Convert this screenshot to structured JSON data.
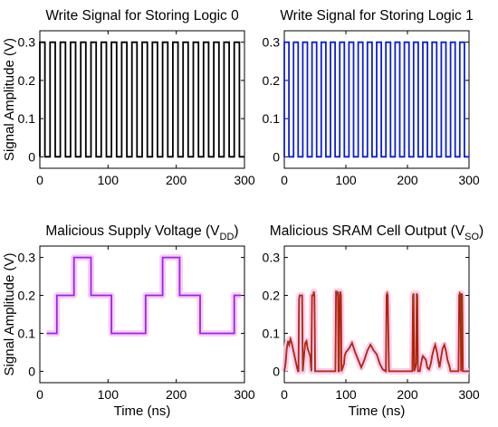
{
  "chart_data": [
    {
      "type": "line",
      "panel": "top-left",
      "title": "Write Signal for Storing Logic 0",
      "ylabel": "Signal Amplitude (V)",
      "xlabel": "",
      "xlim": [
        0,
        300
      ],
      "ylim": [
        -0.03,
        0.33
      ],
      "xticks": [
        0,
        100,
        200,
        300
      ],
      "yticks": [
        0,
        0.1,
        0.2,
        0.3
      ],
      "xtick_labels": [
        "0",
        "100",
        "200",
        "300"
      ],
      "ytick_labels": [
        "0",
        "0.1",
        "0.2",
        "0.3"
      ],
      "grid": false,
      "series": [
        {
          "color": "#000000",
          "shape": "square-wave",
          "low": 0,
          "high": 0.3,
          "period_ns": 15,
          "duty": 0.5,
          "x_start": 0,
          "x_end": 300
        }
      ]
    },
    {
      "type": "line",
      "panel": "top-right",
      "title": "Write Signal for Storing Logic 1",
      "ylabel": "",
      "xlabel": "",
      "xlim": [
        0,
        300
      ],
      "ylim": [
        -0.03,
        0.33
      ],
      "xticks": [
        0,
        100,
        200,
        300
      ],
      "yticks": [
        0,
        0.1,
        0.2,
        0.3
      ],
      "xtick_labels": [
        "0",
        "100",
        "200",
        "300"
      ],
      "ytick_labels": [
        "0",
        "0.1",
        "0.2",
        "0.3"
      ],
      "grid": false,
      "series": [
        {
          "color": "#0a1fd6",
          "shape": "square-wave",
          "low": 0,
          "high": 0.3,
          "period_ns": 15,
          "duty": 0.5,
          "x_start": 0,
          "x_end": 300
        }
      ]
    },
    {
      "type": "line",
      "panel": "bottom-left",
      "title": "Malicious Supply Voltage (V",
      "title_subscript": "DD",
      "title_suffix": ")",
      "ylabel": "Signal Amplitude (V)",
      "xlabel": "Time (ns)",
      "xlim": [
        0,
        300
      ],
      "ylim": [
        -0.03,
        0.33
      ],
      "xticks": [
        0,
        100,
        200,
        300
      ],
      "yticks": [
        0,
        0.1,
        0.2,
        0.3
      ],
      "xtick_labels": [
        "0",
        "100",
        "200",
        "300"
      ],
      "ytick_labels": [
        "0",
        "0.1",
        "0.2",
        "0.3"
      ],
      "grid": false,
      "series": [
        {
          "color": "#a020f0",
          "halo_color": "#f4c8f0",
          "x": [
            10,
            25,
            25,
            50,
            50,
            75,
            75,
            105,
            105,
            155,
            155,
            180,
            180,
            205,
            205,
            235,
            235,
            285,
            285,
            295
          ],
          "y": [
            0.1,
            0.1,
            0.2,
            0.2,
            0.3,
            0.3,
            0.2,
            0.2,
            0.1,
            0.1,
            0.2,
            0.2,
            0.3,
            0.3,
            0.2,
            0.2,
            0.1,
            0.1,
            0.2,
            0.2
          ]
        }
      ]
    },
    {
      "type": "line",
      "panel": "bottom-right",
      "title": "Malicious SRAM Cell Output (V",
      "title_subscript": "SO",
      "title_suffix": ")",
      "ylabel": "",
      "xlabel": "Time (ns)",
      "xlim": [
        0,
        300
      ],
      "ylim": [
        -0.03,
        0.33
      ],
      "xticks": [
        0,
        100,
        200,
        300
      ],
      "yticks": [
        0,
        0.1,
        0.2,
        0.3
      ],
      "xtick_labels": [
        "0",
        "100",
        "200",
        "300"
      ],
      "ytick_labels": [
        "0",
        "0.1",
        "0.2",
        "0.3"
      ],
      "grid": false,
      "series": [
        {
          "color": "#d40000",
          "overlay_color": "#5a7a20",
          "halo_color": "#f8c8ec",
          "x": [
            0,
            2,
            4,
            6,
            8,
            10,
            12,
            14,
            16,
            18,
            20,
            22,
            23,
            24,
            25,
            27,
            29,
            30,
            32,
            34,
            36,
            38,
            40,
            42,
            43,
            44,
            45,
            47,
            48,
            49,
            50,
            52,
            55,
            60,
            65,
            70,
            75,
            80,
            83,
            84,
            85,
            86,
            87,
            88,
            89,
            90,
            91,
            92,
            93,
            95,
            97,
            98,
            100,
            105,
            110,
            115,
            120,
            125,
            130,
            135,
            140,
            145,
            150,
            155,
            160,
            165,
            166,
            167,
            168,
            170,
            175,
            180,
            185,
            190,
            195,
            200,
            205,
            208,
            209,
            210,
            211,
            212,
            213,
            214,
            215,
            216,
            217,
            218,
            219,
            220,
            222,
            224,
            225,
            230,
            232,
            235,
            238,
            240,
            243,
            245,
            248,
            250,
            252,
            255,
            257,
            260,
            263,
            265,
            268,
            270,
            272,
            275,
            278,
            280,
            282,
            283,
            284,
            285,
            286,
            287,
            288,
            289,
            290,
            292,
            295,
            298,
            300
          ],
          "y": [
            0.0,
            0.02,
            0.06,
            0.08,
            0.07,
            0.085,
            0.075,
            0.06,
            0.045,
            0.03,
            0.015,
            0.0,
            0.0,
            0.19,
            0.2,
            0.2,
            0.2,
            0.0,
            0.04,
            0.075,
            0.08,
            0.06,
            0.05,
            0.04,
            0.02,
            0.0,
            0.2,
            0.2,
            0.21,
            0.2,
            0.0,
            0.0,
            0.0,
            0.0,
            0.0,
            0.0,
            0.0,
            0.0,
            0.0,
            0.21,
            0.21,
            0.2,
            0.21,
            0.0,
            0.0,
            0.2,
            0.21,
            0.2,
            0.0,
            0.01,
            0.02,
            0.04,
            0.05,
            0.06,
            0.075,
            0.05,
            0.03,
            0.01,
            0.03,
            0.055,
            0.07,
            0.055,
            0.045,
            0.02,
            0.005,
            0.0,
            0.2,
            0.205,
            0.2,
            0.0,
            0.0,
            0.0,
            0.0,
            0.0,
            0.0,
            0.0,
            0.0,
            0.0,
            0.2,
            0.205,
            0.0,
            0.005,
            0.01,
            0.02,
            0.205,
            0.2,
            0.0,
            0.0,
            0.0,
            0.0,
            0.02,
            0.035,
            0.04,
            0.03,
            0.01,
            0.005,
            0.02,
            0.04,
            0.06,
            0.07,
            0.05,
            0.03,
            0.01,
            0.04,
            0.06,
            0.07,
            0.05,
            0.03,
            0.015,
            0.0,
            0.0,
            0.0,
            0.0,
            0.0,
            0.0,
            0.0,
            0.2,
            0.205,
            0.2,
            0.0,
            0.205,
            0.2,
            0.0,
            0.0,
            0.0,
            0.0,
            0.0
          ]
        }
      ]
    }
  ]
}
